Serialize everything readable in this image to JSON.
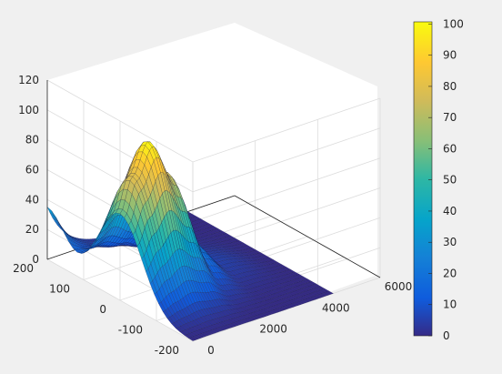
{
  "chart_data": {
    "type": "surface",
    "title": "",
    "xlabel": "",
    "ylabel": "",
    "zlabel": "",
    "x_axis": {
      "ticks": [
        0,
        2000,
        4000,
        6000
      ],
      "labels": [
        "0",
        "2000",
        "4000",
        "6000"
      ],
      "range": [
        0,
        6000
      ]
    },
    "y_axis": {
      "ticks": [
        -200,
        -100,
        0,
        100,
        200
      ],
      "labels": [
        "-200",
        "-100",
        "0",
        "100",
        "200"
      ],
      "range": [
        -200,
        200
      ]
    },
    "z_axis": {
      "ticks": [
        0,
        20,
        40,
        60,
        80,
        100,
        120
      ],
      "labels": [
        "0",
        "20",
        "40",
        "60",
        "80",
        "100",
        "120"
      ],
      "range": [
        0,
        120
      ]
    },
    "surface": {
      "x_extent": [
        0,
        4500
      ],
      "y_extent": [
        -200,
        200
      ],
      "peak": {
        "x": 900,
        "y": 0,
        "z": 100
      },
      "ridge_along_x": [
        {
          "x": 0,
          "z": 58
        },
        {
          "x": 400,
          "z": 80
        },
        {
          "x": 900,
          "z": 100
        },
        {
          "x": 1500,
          "z": 75
        },
        {
          "x": 2200,
          "z": 25
        },
        {
          "x": 3000,
          "z": 6
        },
        {
          "x": 4500,
          "z": 0
        }
      ],
      "shoulder_near_y200": {
        "x": 0,
        "y": 200,
        "z": 35
      }
    },
    "grid": true,
    "colormap": "parula",
    "colorbar": {
      "ticks": [
        0,
        10,
        20,
        30,
        40,
        50,
        60,
        70,
        80,
        90,
        100
      ],
      "labels": [
        "0",
        "10",
        "20",
        "30",
        "40",
        "50",
        "60",
        "70",
        "80",
        "90",
        "100"
      ],
      "range": [
        0,
        100.7
      ]
    }
  }
}
